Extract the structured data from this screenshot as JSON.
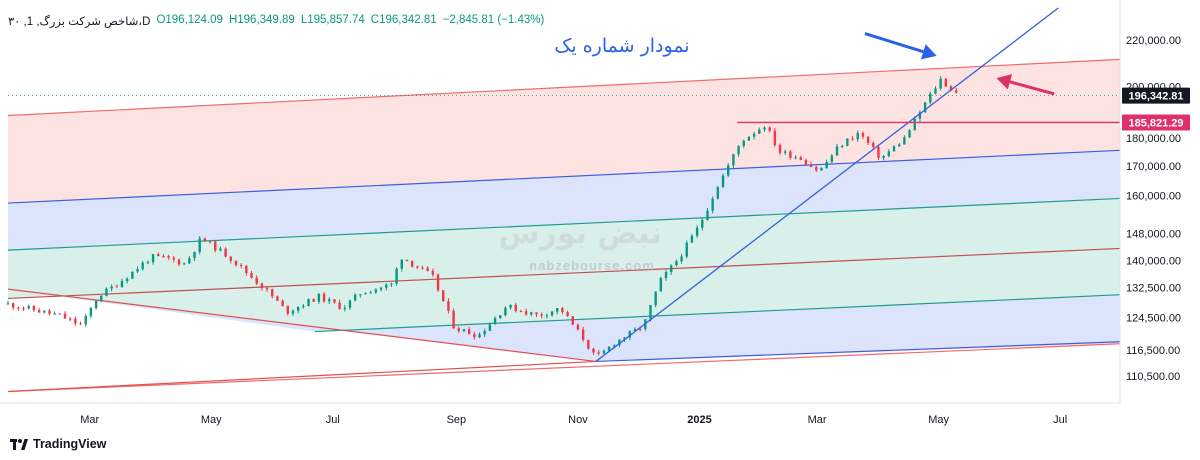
{
  "legend": {
    "symbol": "۳۰ ,1 ,شاخص شرکت بزرگ،D",
    "open": "O196,124.09",
    "high": "H196,349.89",
    "low": "L195,857.74",
    "close": "C196,342.81",
    "change": "−2,845.81 (−1.43%)"
  },
  "watermark": {
    "brand": "نبض بورس",
    "url": "nabzebourse.com"
  },
  "annotation_title": "نمودار شماره یک",
  "footer": {
    "brand": "TradingView",
    "logo_icon": "tradingview-logo-icon"
  },
  "colors": {
    "up": "#089981",
    "down": "#f23645",
    "channel_red": "#f06b6b",
    "channel_blue": "#3d5ede",
    "channel_teal": "#1f9e8c",
    "channel_median": "#c0504d",
    "trendline": "#3060e0",
    "arrow_blue": "#2a62e6",
    "arrow_pink": "#e0306a",
    "price_label": "#131722",
    "level_label": "#e0306a"
  },
  "chart_data": {
    "type": "candlestick",
    "x_tick_labels": [
      "Mar",
      "May",
      "Jul",
      "Sep",
      "Nov",
      "2025",
      "Mar",
      "May",
      "Jul"
    ],
    "y_tick_labels": [
      "220,000.00",
      "200,000.00",
      "180,000.00",
      "170,000.00",
      "160,000.00",
      "148,000.00",
      "140,000.00",
      "132,500.00",
      "124,500.00",
      "116,500.00",
      "110,500.00"
    ],
    "y_ticks": [
      220000,
      200000,
      180000,
      170000,
      160000,
      148000,
      140000,
      132500,
      124500,
      116500,
      110500
    ],
    "scale": "log",
    "ylim": [
      104500,
      235000
    ],
    "last_price": 196342.81,
    "last_price_label": "196,342.81",
    "horizontal_level": 185821.29,
    "horizontal_level_label": "185,821.29",
    "close_path": [
      [
        "2024-01-20",
        128000
      ],
      [
        "2024-02-15",
        125000
      ],
      [
        "2024-02-26",
        122500
      ],
      [
        "2024-03-05",
        130000
      ],
      [
        "2024-03-15",
        133500
      ],
      [
        "2024-04-01",
        141000
      ],
      [
        "2024-04-10",
        140500
      ],
      [
        "2024-04-18",
        139000
      ],
      [
        "2024-04-26",
        146500
      ],
      [
        "2024-05-10",
        141000
      ],
      [
        "2024-05-28",
        132000
      ],
      [
        "2024-06-08",
        126000
      ],
      [
        "2024-06-24",
        130000
      ],
      [
        "2024-07-06",
        127000
      ],
      [
        "2024-07-15",
        131000
      ],
      [
        "2024-08-01",
        133500
      ],
      [
        "2024-08-03",
        141500
      ],
      [
        "2024-08-20",
        135500
      ],
      [
        "2024-08-31",
        122000
      ],
      [
        "2024-09-12",
        120000
      ],
      [
        "2024-09-26",
        127500
      ],
      [
        "2024-10-12",
        125000
      ],
      [
        "2024-10-23",
        127000
      ],
      [
        "2024-11-04",
        119000
      ],
      [
        "2024-11-10",
        114500
      ],
      [
        "2024-11-20",
        118500
      ],
      [
        "2024-12-04",
        122500
      ],
      [
        "2024-12-12",
        134000
      ],
      [
        "2024-12-22",
        141000
      ],
      [
        "2025-01-01",
        150500
      ],
      [
        "2025-01-10",
        163000
      ],
      [
        "2025-01-22",
        179000
      ],
      [
        "2025-02-03",
        185000
      ],
      [
        "2025-02-10",
        175000
      ],
      [
        "2025-02-20",
        173000
      ],
      [
        "2025-03-02",
        168000
      ],
      [
        "2025-03-12",
        177000
      ],
      [
        "2025-03-22",
        182000
      ],
      [
        "2025-04-02",
        172500
      ],
      [
        "2025-04-14",
        180000
      ],
      [
        "2025-04-24",
        193000
      ],
      [
        "2025-05-02",
        203000
      ],
      [
        "2025-05-07",
        199000
      ],
      [
        "2025-05-12",
        196342.81
      ]
    ],
    "channels": [
      {
        "name": "upper",
        "from": [
          "2024-01-20",
          188500
        ],
        "to": [
          "2025-07-31",
          211500
        ],
        "color": "#f06b6b"
      },
      {
        "name": "mid-upper",
        "from": [
          "2024-01-20",
          157500
        ],
        "to": [
          "2025-07-31",
          175500
        ],
        "color": "#3d5ede"
      },
      {
        "name": "teal-upper",
        "from": [
          "2024-01-20",
          143000
        ],
        "to": [
          "2025-07-31",
          159000
        ],
        "color": "#1f9e8c"
      },
      {
        "name": "median",
        "from": [
          "2024-01-20",
          129500
        ],
        "to": [
          "2025-07-31",
          143500
        ],
        "color": "#c0504d"
      },
      {
        "name": "teal-lower",
        "from": [
          "2024-06-22",
          121000
        ],
        "to": [
          "2025-07-31",
          130500
        ],
        "color": "#1f9e8c"
      },
      {
        "name": "mid-lower",
        "from": [
          "2024-11-10",
          113800
        ],
        "to": [
          "2025-07-31",
          118500
        ],
        "color": "#3d5ede"
      },
      {
        "name": "lower",
        "from": [
          "2024-01-20",
          107000
        ],
        "to": [
          "2025-07-31",
          118000
        ],
        "color": "#f06b6b"
      }
    ],
    "pivot_lines": [
      {
        "from": [
          "2024-01-20",
          132000
        ],
        "to": [
          "2024-11-10",
          113800
        ],
        "color": "#e05050"
      },
      {
        "from": [
          "2024-01-20",
          107000
        ],
        "to": [
          "2024-11-10",
          113800
        ],
        "color": "#e05050"
      }
    ],
    "trendline": {
      "from": [
        "2024-11-10",
        113800
      ],
      "to": [
        "2025-06-30",
        235000
      ],
      "color": "#3060e0"
    },
    "level_segment": {
      "from": "2025-01-20",
      "to": "2025-07-31",
      "value": 185821.29
    },
    "arrows": [
      {
        "name": "blue-arrow",
        "from": [
          "2025-03-25",
          223000
        ],
        "to": [
          "2025-04-30",
          213000
        ],
        "color": "#2a62e6"
      },
      {
        "name": "pink-arrow",
        "from": [
          "2025-06-28",
          197000
        ],
        "to": [
          "2025-05-30",
          203500
        ],
        "color": "#e0306a"
      }
    ]
  }
}
